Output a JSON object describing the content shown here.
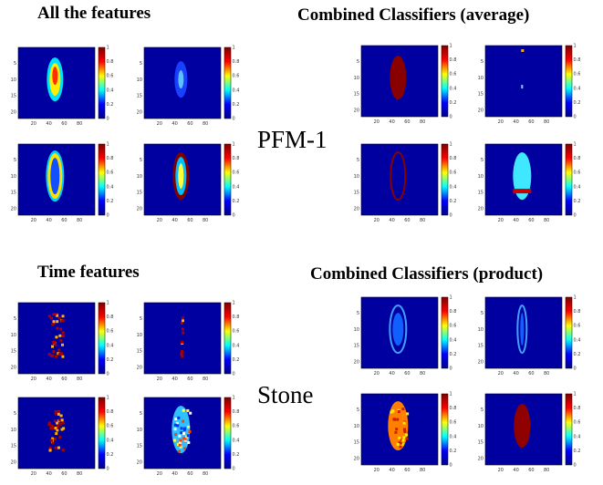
{
  "titles": {
    "all_features": "All the features",
    "combined_average": "Combined Classifiers (average)",
    "time_features": "Time features",
    "combined_product": "Combined Classifiers (product)"
  },
  "labels": {
    "pfm": "PFM-1",
    "stone": "Stone"
  },
  "colors": {
    "background": "#0000a0",
    "colormap": [
      "#00008f",
      "#0000ff",
      "#00ffff",
      "#ffff00",
      "#ff0000",
      "#800000"
    ]
  },
  "axes": {
    "y_ticks": [
      "5",
      "10",
      "15",
      "20"
    ],
    "x_ticks_a": [
      "20",
      "40",
      "60",
      "80"
    ],
    "x_ticks_b": [
      "20",
      "40",
      "60",
      "80"
    ]
  },
  "colorbar_ticks": {
    "unit": [
      "1",
      "0.8",
      "0.6",
      "0.4",
      "0.2",
      "0"
    ],
    "unit_b": [
      "1",
      "0.8",
      "0.6",
      "0.4",
      "0.2",
      "0"
    ]
  }
}
